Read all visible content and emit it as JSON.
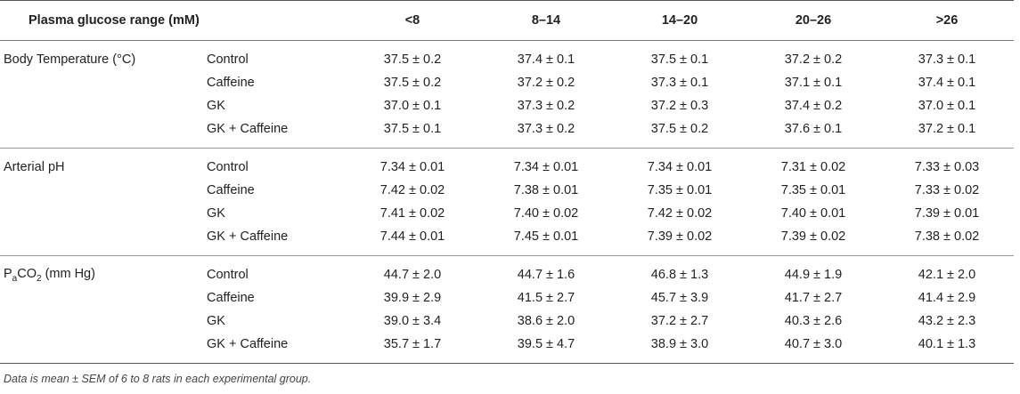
{
  "header": {
    "range_label": "Plasma glucose range (mM)",
    "ranges": [
      "<8",
      "8–14",
      "14–20",
      "20–26",
      ">26"
    ]
  },
  "sections": [
    {
      "parameter": "Body Temperature (°C)",
      "rows": [
        {
          "group": "Control",
          "values": [
            "37.5 ± 0.2",
            "37.4 ± 0.1",
            "37.5 ± 0.1",
            "37.2 ± 0.2",
            "37.3 ± 0.1"
          ]
        },
        {
          "group": "Caffeine",
          "values": [
            "37.5 ± 0.2",
            "37.2 ± 0.2",
            "37.3 ± 0.1",
            "37.1 ± 0.1",
            "37.4 ± 0.1"
          ]
        },
        {
          "group": "GK",
          "values": [
            "37.0 ± 0.1",
            "37.3 ± 0.2",
            "37.2 ± 0.3",
            "37.4 ± 0.2",
            "37.0 ± 0.1"
          ]
        },
        {
          "group": "GK + Caffeine",
          "values": [
            "37.5 ± 0.1",
            "37.3 ± 0.2",
            "37.5 ± 0.2",
            "37.6 ± 0.1",
            "37.2 ± 0.1"
          ]
        }
      ]
    },
    {
      "parameter": "Arterial pH",
      "rows": [
        {
          "group": "Control",
          "values": [
            "7.34 ± 0.01",
            "7.34 ± 0.01",
            "7.34 ± 0.01",
            "7.31 ± 0.02",
            "7.33 ± 0.03"
          ]
        },
        {
          "group": "Caffeine",
          "values": [
            "7.42 ± 0.02",
            "7.38 ± 0.01",
            "7.35 ± 0.01",
            "7.35 ± 0.01",
            "7.33 ± 0.02"
          ]
        },
        {
          "group": "GK",
          "values": [
            "7.41 ± 0.02",
            "7.40 ± 0.02",
            "7.42 ± 0.02",
            "7.40 ± 0.01",
            "7.39 ± 0.01"
          ]
        },
        {
          "group": "GK + Caffeine",
          "values": [
            "7.44 ± 0.01",
            "7.45 ± 0.01",
            "7.39 ± 0.02",
            "7.39 ± 0.02",
            "7.38 ± 0.02"
          ]
        }
      ]
    },
    {
      "parameter_prefix": "P",
      "parameter_sub1": "a",
      "parameter_mid": "CO",
      "parameter_sub2": "2",
      "parameter_suffix": " (mm Hg)",
      "rows": [
        {
          "group": "Control",
          "values": [
            "44.7 ± 2.0",
            "44.7 ± 1.6",
            "46.8 ± 1.3",
            "44.9 ± 1.9",
            "42.1 ± 2.0"
          ]
        },
        {
          "group": "Caffeine",
          "values": [
            "39.9 ± 2.9",
            "41.5 ± 2.7",
            "45.7 ± 3.9",
            "41.7 ± 2.7",
            "41.4 ± 2.9"
          ]
        },
        {
          "group": "GK",
          "values": [
            "39.0 ± 3.4",
            "38.6 ± 2.0",
            "37.2 ± 2.7",
            "40.3 ± 2.6",
            "43.2 ± 2.3"
          ]
        },
        {
          "group": "GK + Caffeine",
          "values": [
            "35.7 ± 1.7",
            "39.5 ± 4.7",
            "38.9 ± 3.0",
            "40.7 ± 3.0",
            "40.1 ± 1.3"
          ]
        }
      ]
    }
  ],
  "footnote": "Data is mean ± SEM of 6 to 8 rats in each experimental group."
}
